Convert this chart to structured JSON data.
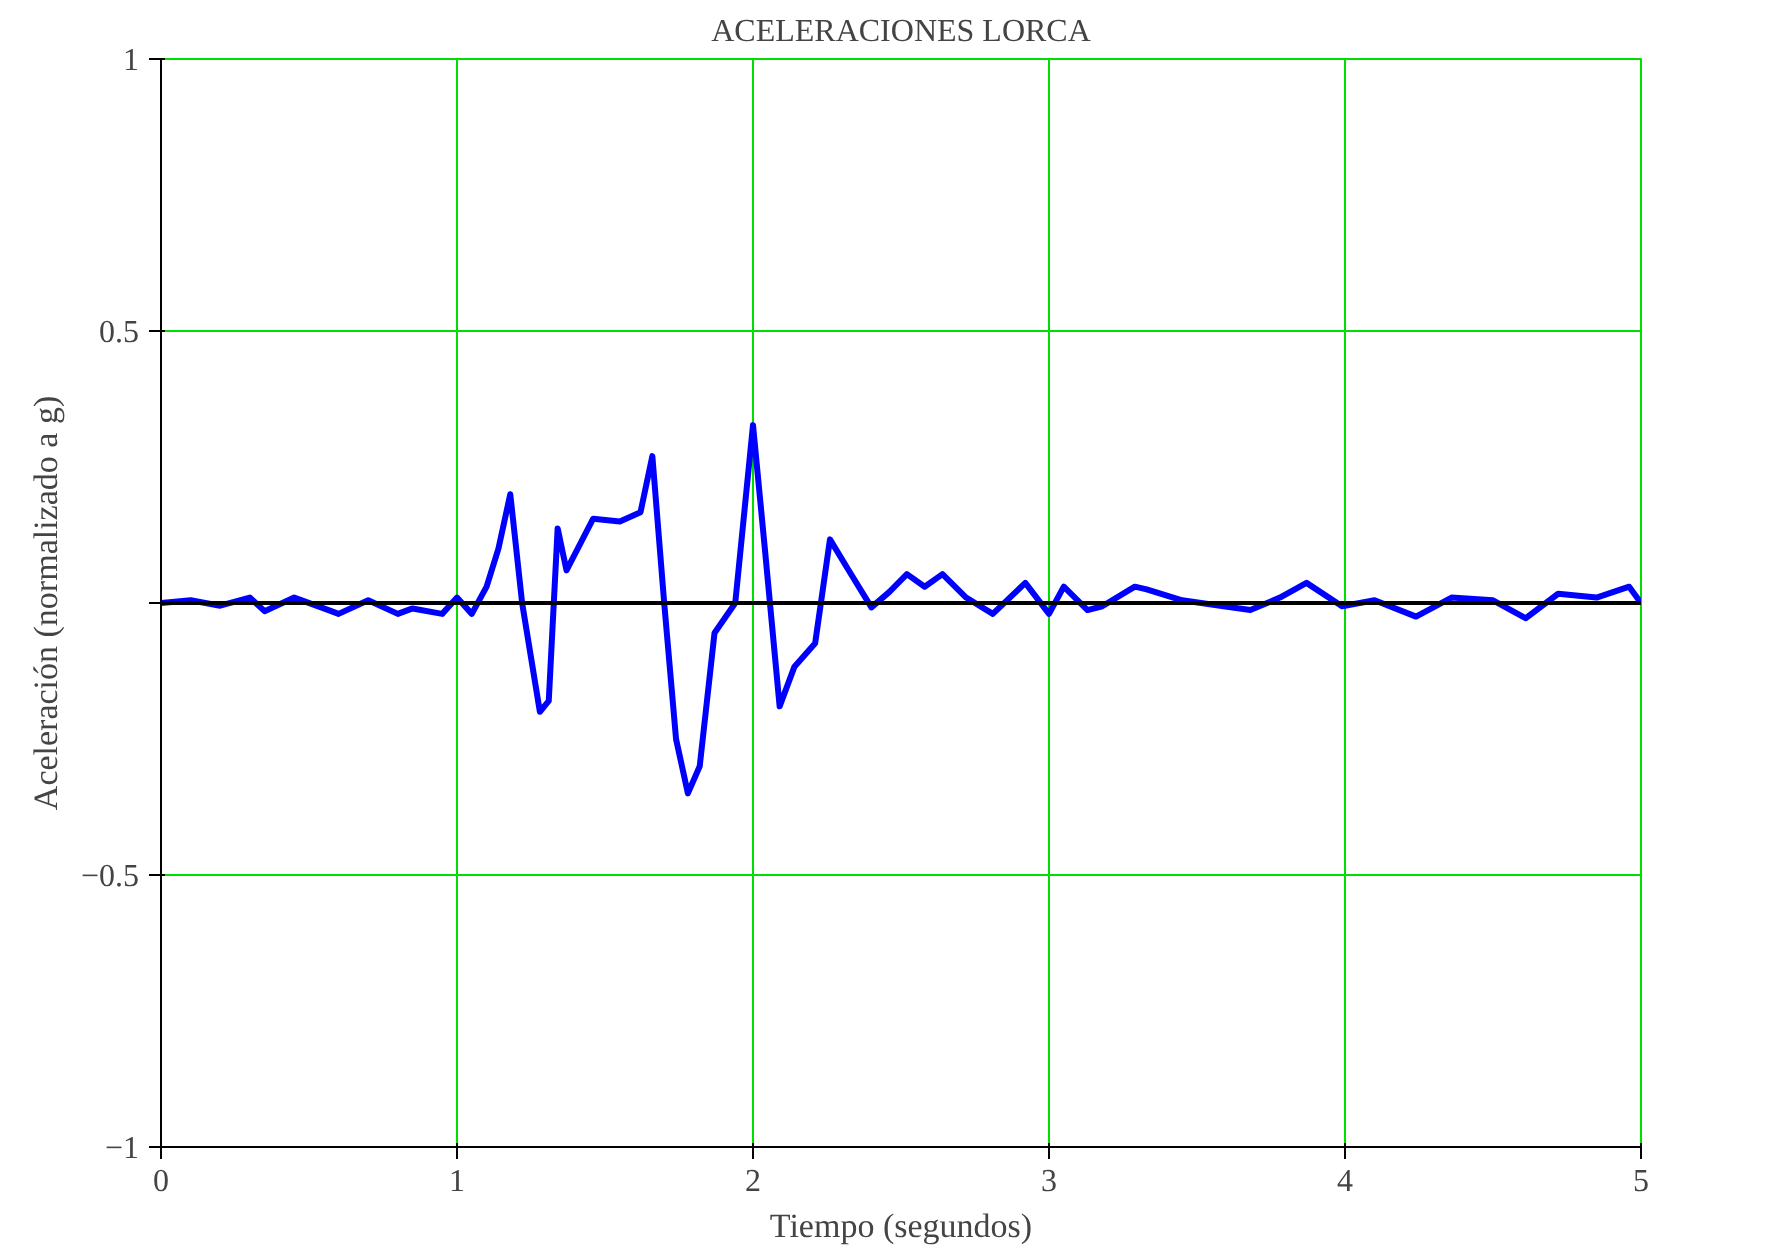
{
  "chart_data": {
    "type": "line",
    "title": "ACELERACIONES LORCA",
    "xlabel": "Tiempo (segundos)",
    "ylabel": "Aceleración (normalizado a g)",
    "xlim": [
      0,
      5
    ],
    "ylim": [
      -1,
      1
    ],
    "xticks": [
      0,
      1,
      2,
      3,
      4,
      5
    ],
    "yticks": [
      {
        "value": -1,
        "label": "−1"
      },
      {
        "value": -0.5,
        "label": "−0.5"
      },
      {
        "value": 0,
        "label": null
      },
      0.5,
      1
    ],
    "grid": true,
    "line_style": "solid",
    "ref_lines": [
      {
        "axis": "y",
        "value": 0,
        "color": "#000000"
      }
    ],
    "series": [
      {
        "color": "#0000ff",
        "x": [
          0,
          0.1,
          0.2,
          0.3,
          0.35,
          0.45,
          0.55,
          0.6,
          0.7,
          0.8,
          0.85,
          0.95,
          1.0,
          1.05,
          1.1,
          1.14,
          1.18,
          1.22,
          1.28,
          1.31,
          1.34,
          1.37,
          1.46,
          1.55,
          1.62,
          1.66,
          1.7,
          1.74,
          1.78,
          1.82,
          1.87,
          1.94,
          2.0,
          2.04,
          2.09,
          2.14,
          2.21,
          2.26,
          2.32,
          2.4,
          2.46,
          2.52,
          2.58,
          2.64,
          2.72,
          2.81,
          2.92,
          3.0,
          3.05,
          3.13,
          3.18,
          3.29,
          3.33,
          3.45,
          3.59,
          3.68,
          3.78,
          3.87,
          3.99,
          4.1,
          4.24,
          4.36,
          4.5,
          4.61,
          4.72,
          4.85,
          4.96,
          5.0
        ],
        "values": [
          0,
          0.005,
          -0.005,
          0.01,
          -0.015,
          0.01,
          -0.01,
          -0.02,
          0.005,
          -0.02,
          -0.01,
          -0.02,
          0.01,
          -0.02,
          0.03,
          0.1,
          0.2,
          0.0,
          -0.2,
          -0.18,
          0.137,
          0.06,
          0.155,
          0.15,
          0.167,
          0.27,
          0.0,
          -0.25,
          -0.35,
          -0.3,
          -0.055,
          0.0,
          0.327,
          0.1,
          -0.19,
          -0.117,
          -0.074,
          0.117,
          0.063,
          -0.008,
          0.02,
          0.053,
          0.03,
          0.053,
          0.01,
          -0.02,
          0.037,
          -0.02,
          0.03,
          -0.013,
          -0.006,
          0.03,
          0.025,
          0.005,
          -0.006,
          -0.013,
          0.01,
          0.037,
          -0.006,
          0.005,
          -0.025,
          0.01,
          0.005,
          -0.028,
          0.017,
          0.01,
          0.03,
          0.0
        ]
      }
    ]
  }
}
